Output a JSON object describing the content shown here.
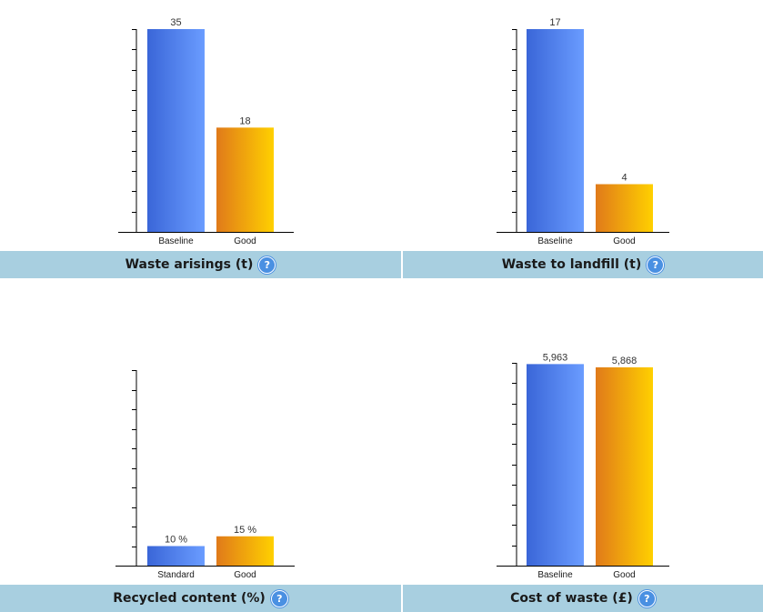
{
  "colors": {
    "baseline_start": "#3a66d8",
    "baseline_end": "#6a9cff",
    "good_start": "#e07a1a",
    "good_end": "#ffd000",
    "axis": "#000000",
    "caption_bar": "#a8cfe0",
    "help_icon": "#4a90e2"
  },
  "help_icon": {
    "name": "help-question-icon",
    "glyph": "?"
  },
  "chart_data": [
    {
      "type": "bar",
      "title": "Waste arisings (t)",
      "categories": [
        "Baseline",
        "Good"
      ],
      "values": [
        35,
        18
      ],
      "value_labels": [
        "35",
        "18"
      ],
      "ylim": [
        0,
        35
      ]
    },
    {
      "type": "bar",
      "title": "Waste to landfill (t)",
      "categories": [
        "Baseline",
        "Good"
      ],
      "values": [
        17,
        4
      ],
      "value_labels": [
        "17",
        "4"
      ],
      "ylim": [
        0,
        17
      ]
    },
    {
      "type": "bar",
      "title": "Recycled content (%)",
      "categories": [
        "Standard",
        "Good"
      ],
      "values": [
        10,
        15
      ],
      "value_labels": [
        "10 %",
        "15 %"
      ],
      "ylim": [
        0,
        100
      ]
    },
    {
      "type": "bar",
      "title": "Cost of waste (£)",
      "categories": [
        "Baseline",
        "Good"
      ],
      "values": [
        5963,
        5868
      ],
      "value_labels": [
        "5,963",
        "5,868"
      ],
      "ylim": [
        0,
        6000
      ]
    }
  ]
}
